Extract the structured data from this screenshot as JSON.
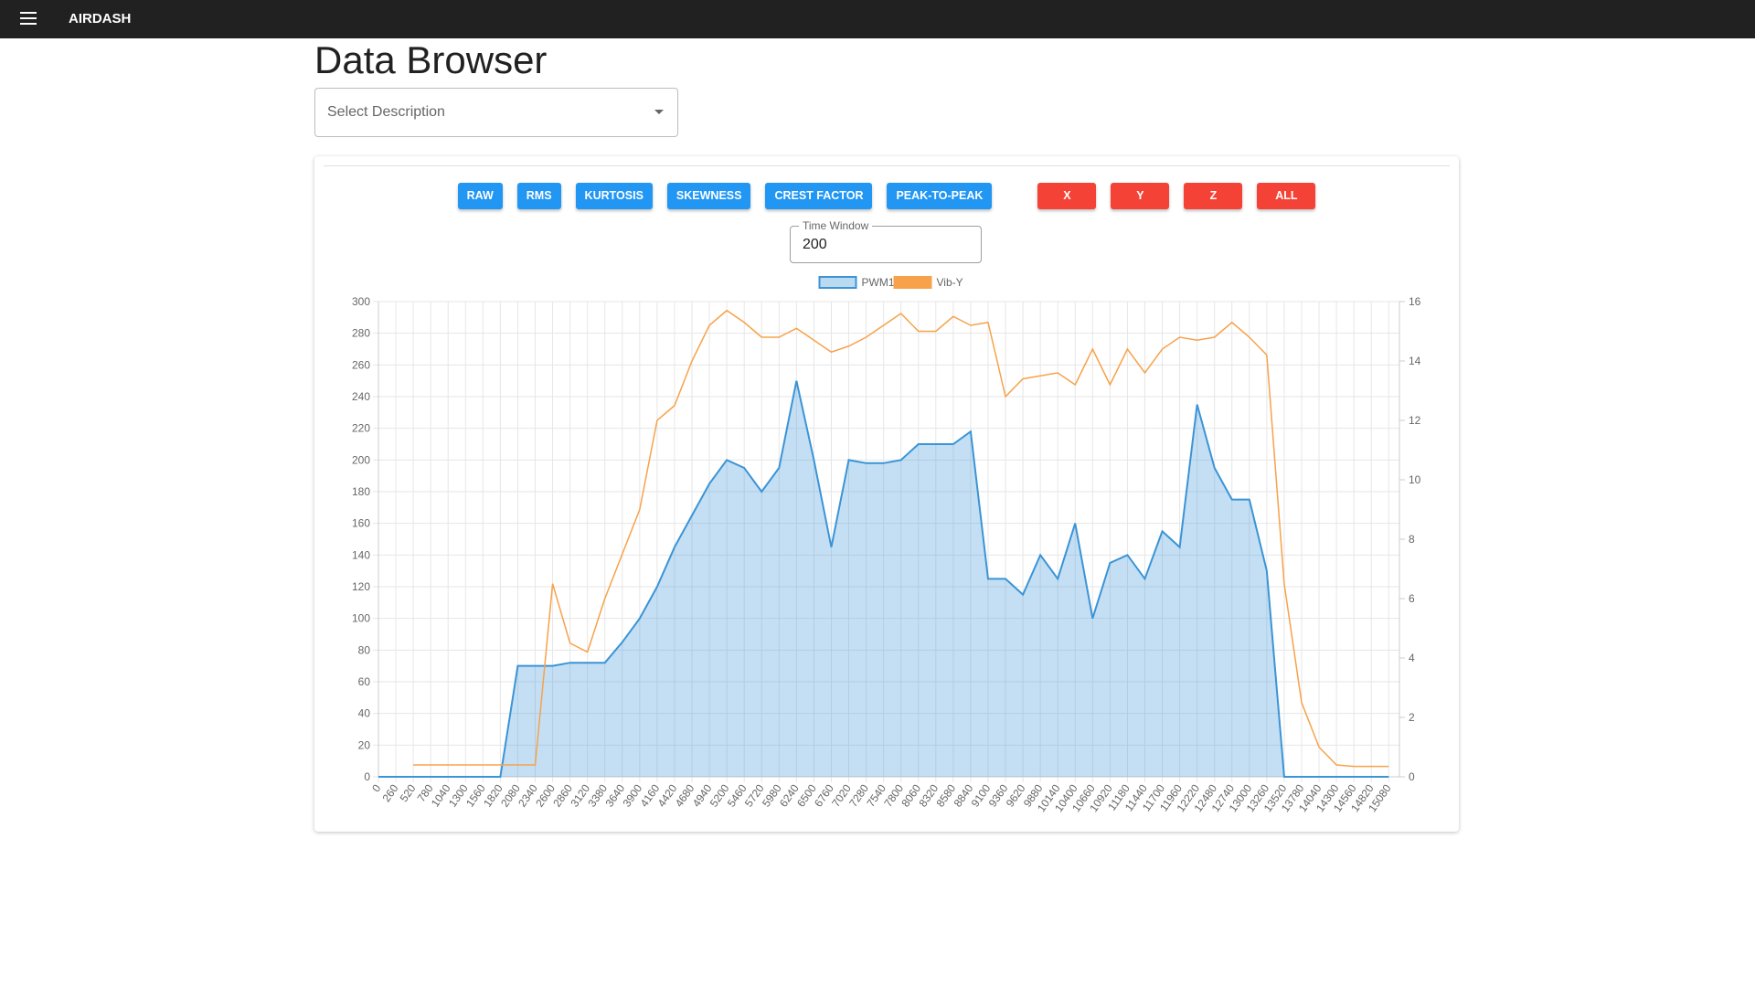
{
  "nav": {
    "title": "AIRDASH"
  },
  "page": {
    "title": "Data Browser"
  },
  "select": {
    "placeholder": "Select Description"
  },
  "metric_buttons": [
    "RAW",
    "RMS",
    "KURTOSIS",
    "SKEWNESS",
    "CREST FACTOR",
    "PEAK-TO-PEAK"
  ],
  "axis_buttons": [
    "X",
    "Y",
    "Z",
    "ALL"
  ],
  "time_window": {
    "label": "Time Window",
    "value": 200
  },
  "chart_data": {
    "type": "line",
    "x": [
      0,
      260,
      520,
      780,
      1040,
      1300,
      1560,
      1820,
      2080,
      2340,
      2600,
      2860,
      3120,
      3380,
      3640,
      3900,
      4160,
      4420,
      4680,
      4940,
      5200,
      5460,
      5720,
      5980,
      6240,
      6500,
      6760,
      7020,
      7280,
      7540,
      7800,
      8060,
      8320,
      8580,
      8840,
      9100,
      9360,
      9620,
      9880,
      10140,
      10400,
      10660,
      10920,
      11180,
      11440,
      11700,
      11960,
      12220,
      12480,
      12740,
      13000,
      13260,
      13520,
      13780,
      14040,
      14300,
      14560,
      14820,
      15080
    ],
    "xlim": [
      0,
      15240
    ],
    "xticks": [
      0,
      260,
      520,
      780,
      1040,
      1300,
      1560,
      1820,
      2080,
      2340,
      2600,
      2860,
      3120,
      3380,
      3640,
      3900,
      4160,
      4420,
      4680,
      4940,
      5200,
      5460,
      5720,
      5980,
      6240,
      6500,
      6760,
      7020,
      7280,
      7540,
      7800,
      8060,
      8320,
      8580,
      8840,
      9100,
      9360,
      9620,
      9880,
      10140,
      10400,
      10660,
      10920,
      11180,
      11440,
      11700,
      11960,
      12220,
      12480,
      12740,
      13000,
      13260,
      13520,
      13780,
      14040,
      14300,
      14560,
      14820,
      15080
    ],
    "ylim": [
      0,
      300
    ],
    "yticks": [
      0,
      20,
      40,
      60,
      80,
      100,
      120,
      140,
      160,
      180,
      200,
      220,
      240,
      260,
      280,
      300
    ],
    "y2lim": [
      0,
      16
    ],
    "y2ticks": [
      0,
      2,
      4,
      6,
      8,
      10,
      12,
      14,
      16
    ],
    "grid": true,
    "legend": "top",
    "series": [
      {
        "name": "PWM1",
        "color": "#3a94d6",
        "fill": true,
        "values": [
          0,
          0,
          0,
          0,
          0,
          0,
          0,
          0,
          70,
          70,
          70,
          72,
          72,
          72,
          85,
          100,
          120,
          145,
          165,
          185,
          200,
          195,
          180,
          195,
          250,
          200,
          145,
          200,
          198,
          198,
          200,
          210,
          210,
          210,
          218,
          125,
          125,
          115,
          140,
          125,
          160,
          100,
          135,
          140,
          125,
          155,
          145,
          235,
          195,
          175,
          175,
          130,
          0,
          0,
          0,
          0,
          0,
          0,
          0
        ]
      },
      {
        "name": "Vib-Y",
        "color": "#f7a24a",
        "axis": "y2",
        "values": [
          null,
          null,
          0.4,
          0.4,
          0.4,
          0.4,
          0.4,
          0.4,
          0.4,
          0.4,
          6.5,
          4.5,
          4.2,
          6.0,
          7.5,
          9,
          12,
          12.5,
          14,
          15.2,
          15.7,
          15.3,
          14.8,
          14.8,
          15.1,
          14.7,
          14.3,
          14.5,
          14.8,
          15.2,
          15.6,
          15,
          15,
          15.5,
          15.2,
          15.3,
          12.8,
          13.4,
          13.5,
          13.6,
          13.2,
          14.4,
          13.2,
          14.4,
          13.6,
          14.4,
          14.8,
          14.7,
          14.8,
          15.3,
          14.8,
          14.2,
          6.5,
          2.5,
          1,
          0.4,
          0.35,
          0.35,
          0.35
        ]
      }
    ]
  }
}
